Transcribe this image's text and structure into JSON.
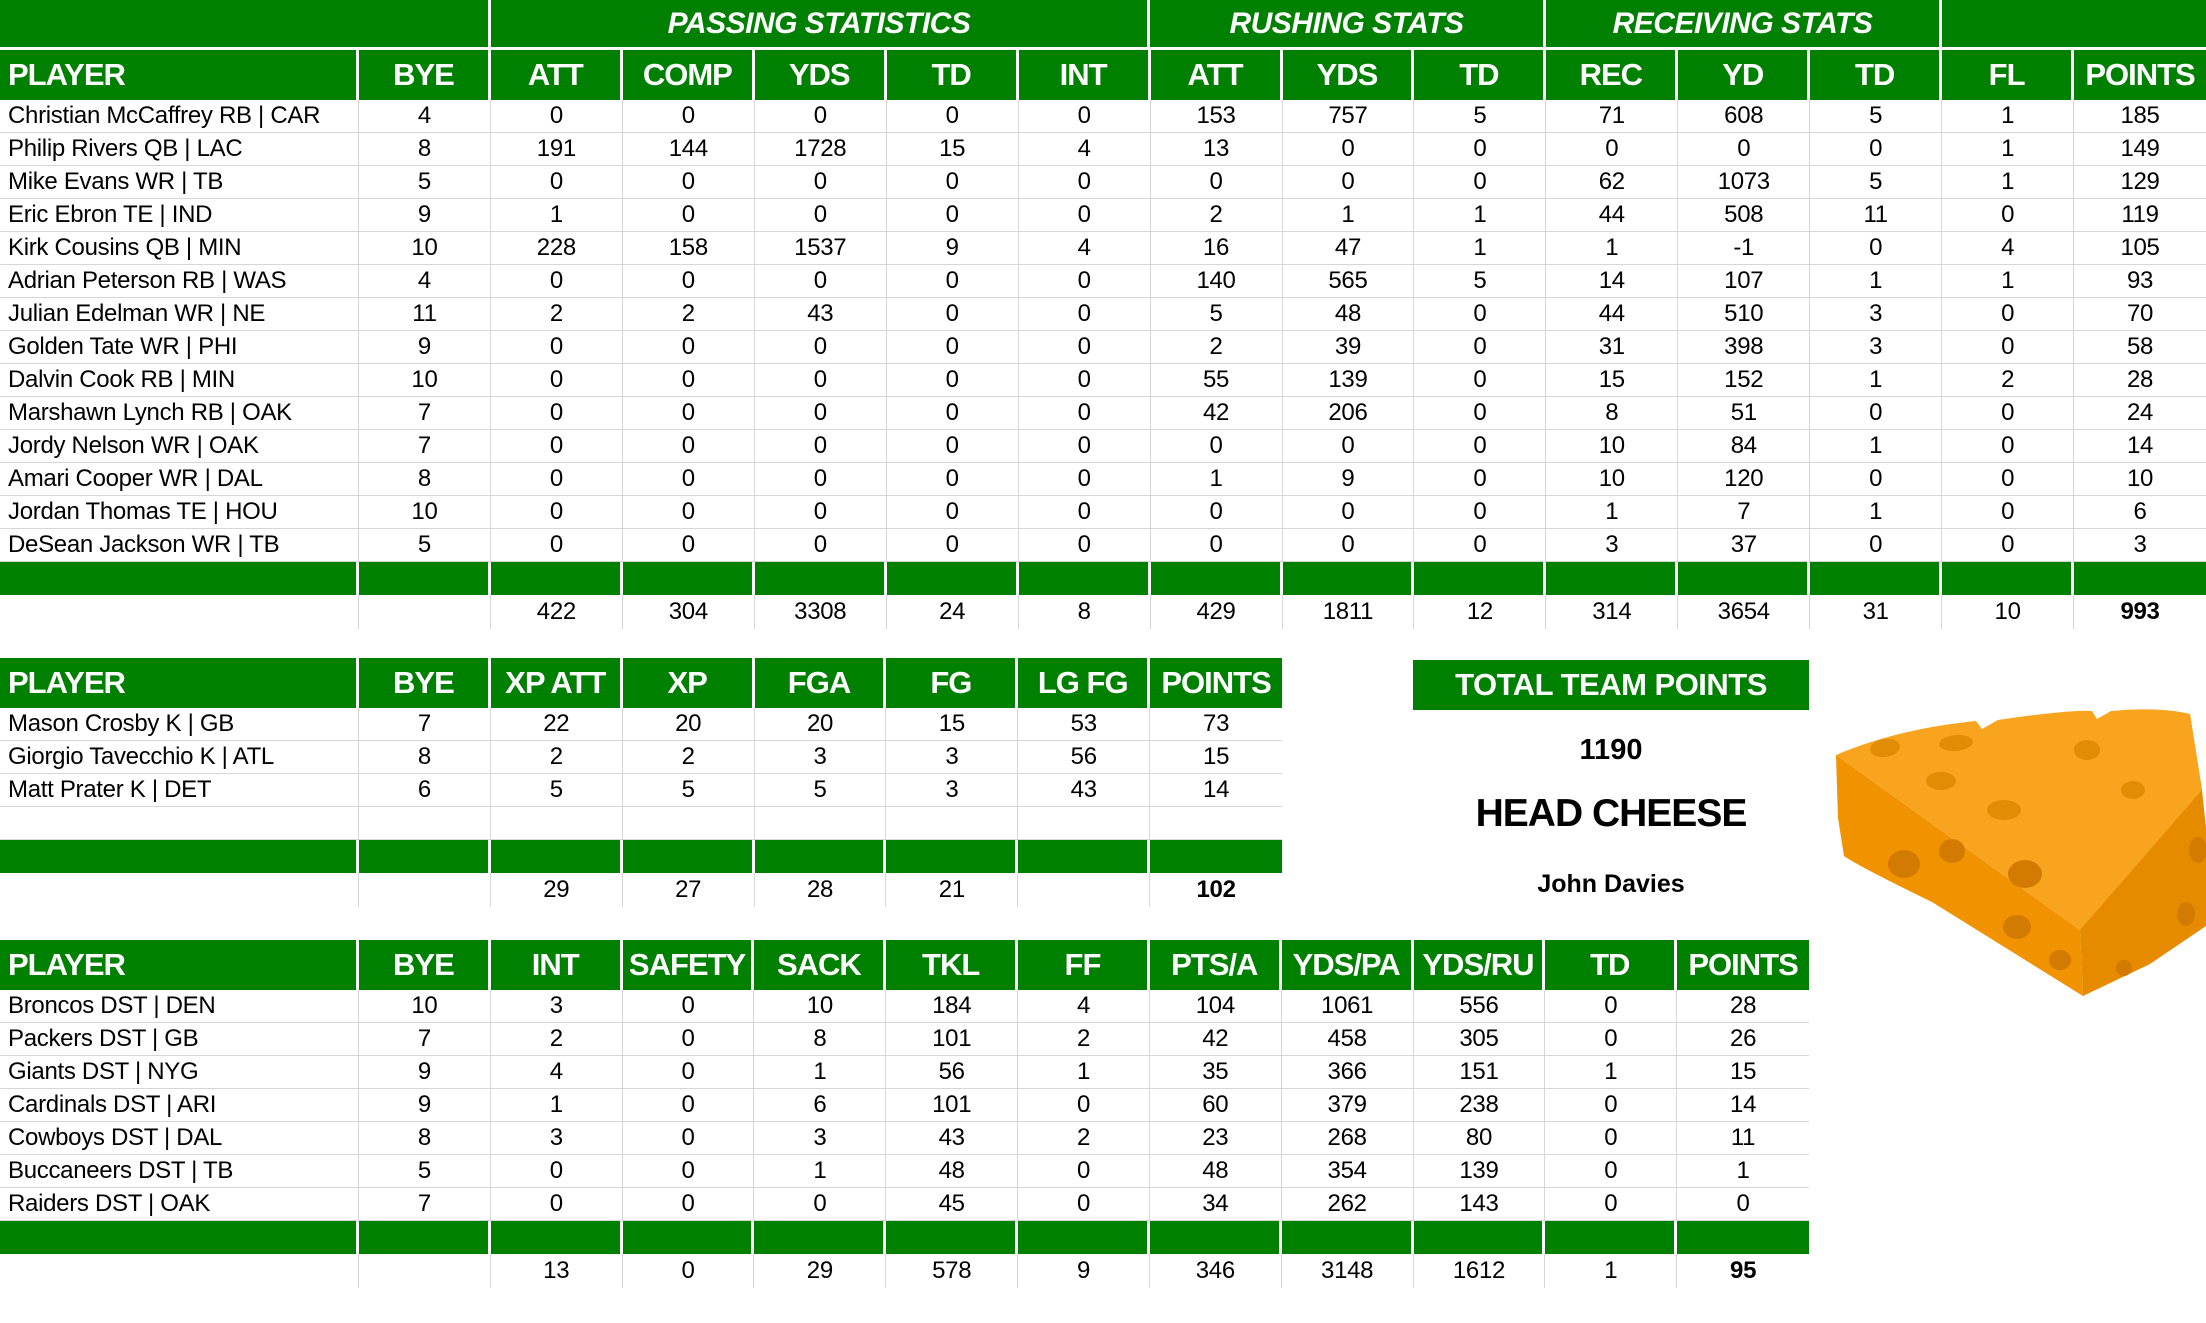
{
  "colors": {
    "header_green": "#008000",
    "grid_line": "#d6d6d6",
    "cheese_top": "#F9A41F",
    "cheese_front": "#F19200",
    "cheese_side": "#E68A00",
    "cheese_hole_top": "#E08C05",
    "cheese_hole_front": "#D27A02"
  },
  "offense_table": {
    "group_headers": [
      "",
      "PASSING STATISTICS",
      "RUSHING STATS",
      "RECEIVING STATS",
      ""
    ],
    "columns": [
      "PLAYER",
      "BYE",
      "ATT",
      "COMP",
      "YDS",
      "TD",
      "INT",
      "ATT",
      "YDS",
      "TD",
      "REC",
      "YD",
      "TD",
      "FL",
      "POINTS"
    ],
    "rows": [
      [
        "Christian McCaffrey RB | CAR",
        "4",
        "0",
        "0",
        "0",
        "0",
        "0",
        "153",
        "757",
        "5",
        "71",
        "608",
        "5",
        "1",
        "185"
      ],
      [
        "Philip Rivers QB | LAC",
        "8",
        "191",
        "144",
        "1728",
        "15",
        "4",
        "13",
        "0",
        "0",
        "0",
        "0",
        "0",
        "1",
        "149"
      ],
      [
        "Mike Evans WR | TB",
        "5",
        "0",
        "0",
        "0",
        "0",
        "0",
        "0",
        "0",
        "0",
        "62",
        "1073",
        "5",
        "1",
        "129"
      ],
      [
        "Eric Ebron TE | IND",
        "9",
        "1",
        "0",
        "0",
        "0",
        "0",
        "2",
        "1",
        "1",
        "44",
        "508",
        "11",
        "0",
        "119"
      ],
      [
        "Kirk Cousins QB | MIN",
        "10",
        "228",
        "158",
        "1537",
        "9",
        "4",
        "16",
        "47",
        "1",
        "1",
        "-1",
        "0",
        "4",
        "105"
      ],
      [
        "Adrian Peterson RB | WAS",
        "4",
        "0",
        "0",
        "0",
        "0",
        "0",
        "140",
        "565",
        "5",
        "14",
        "107",
        "1",
        "1",
        "93"
      ],
      [
        "Julian Edelman WR | NE",
        "11",
        "2",
        "2",
        "43",
        "0",
        "0",
        "5",
        "48",
        "0",
        "44",
        "510",
        "3",
        "0",
        "70"
      ],
      [
        "Golden Tate WR | PHI",
        "9",
        "0",
        "0",
        "0",
        "0",
        "0",
        "2",
        "39",
        "0",
        "31",
        "398",
        "3",
        "0",
        "58"
      ],
      [
        "Dalvin Cook RB | MIN",
        "10",
        "0",
        "0",
        "0",
        "0",
        "0",
        "55",
        "139",
        "0",
        "15",
        "152",
        "1",
        "2",
        "28"
      ],
      [
        "Marshawn Lynch RB | OAK",
        "7",
        "0",
        "0",
        "0",
        "0",
        "0",
        "42",
        "206",
        "0",
        "8",
        "51",
        "0",
        "0",
        "24"
      ],
      [
        "Jordy Nelson WR | OAK",
        "7",
        "0",
        "0",
        "0",
        "0",
        "0",
        "0",
        "0",
        "0",
        "10",
        "84",
        "1",
        "0",
        "14"
      ],
      [
        "Amari Cooper WR | DAL",
        "8",
        "0",
        "0",
        "0",
        "0",
        "0",
        "1",
        "9",
        "0",
        "10",
        "120",
        "0",
        "0",
        "10"
      ],
      [
        "Jordan Thomas TE | HOU",
        "10",
        "0",
        "0",
        "0",
        "0",
        "0",
        "0",
        "0",
        "0",
        "1",
        "7",
        "1",
        "0",
        "6"
      ],
      [
        "DeSean Jackson WR | TB",
        "5",
        "0",
        "0",
        "0",
        "0",
        "0",
        "0",
        "0",
        "0",
        "3",
        "37",
        "0",
        "0",
        "3"
      ]
    ],
    "totals": [
      "",
      "",
      "422",
      "304",
      "3308",
      "24",
      "8",
      "429",
      "1811",
      "12",
      "314",
      "3654",
      "31",
      "10",
      "993"
    ]
  },
  "kicker_table": {
    "columns": [
      "PLAYER",
      "BYE",
      "XP ATT",
      "XP",
      "FGA",
      "FG",
      "LG FG",
      "POINTS"
    ],
    "rows": [
      [
        "Mason Crosby K | GB",
        "7",
        "22",
        "20",
        "20",
        "15",
        "53",
        "73"
      ],
      [
        "Giorgio Tavecchio K | ATL",
        "8",
        "2",
        "2",
        "3",
        "3",
        "56",
        "15"
      ],
      [
        "Matt Prater K | DET",
        "6",
        "5",
        "5",
        "5",
        "3",
        "43",
        "14"
      ],
      [
        "",
        "",
        "",
        "",
        "",
        "",
        "",
        ""
      ]
    ],
    "totals": [
      "",
      "",
      "29",
      "27",
      "28",
      "21",
      "",
      "102"
    ]
  },
  "dst_table": {
    "columns": [
      "PLAYER",
      "BYE",
      "INT",
      "SAFETY",
      "SACK",
      "TKL",
      "FF",
      "PTS/A",
      "YDS/PA",
      "YDS/RU",
      "TD",
      "POINTS"
    ],
    "rows": [
      [
        "Broncos DST | DEN",
        "10",
        "3",
        "0",
        "10",
        "184",
        "4",
        "104",
        "1061",
        "556",
        "0",
        "28"
      ],
      [
        "Packers DST | GB",
        "7",
        "2",
        "0",
        "8",
        "101",
        "2",
        "42",
        "458",
        "305",
        "0",
        "26"
      ],
      [
        "Giants DST | NYG",
        "9",
        "4",
        "0",
        "1",
        "56",
        "1",
        "35",
        "366",
        "151",
        "1",
        "15"
      ],
      [
        "Cardinals DST | ARI",
        "9",
        "1",
        "0",
        "6",
        "101",
        "0",
        "60",
        "379",
        "238",
        "0",
        "14"
      ],
      [
        "Cowboys DST | DAL",
        "8",
        "3",
        "0",
        "3",
        "43",
        "2",
        "23",
        "268",
        "80",
        "0",
        "11"
      ],
      [
        "Buccaneers DST | TB",
        "5",
        "0",
        "0",
        "1",
        "48",
        "0",
        "48",
        "354",
        "139",
        "0",
        "1"
      ],
      [
        "Raiders DST | OAK",
        "7",
        "0",
        "0",
        "0",
        "45",
        "0",
        "34",
        "262",
        "143",
        "0",
        "0"
      ]
    ],
    "totals": [
      "",
      "",
      "13",
      "0",
      "29",
      "578",
      "9",
      "346",
      "3148",
      "1612",
      "1",
      "95"
    ]
  },
  "team_summary": {
    "title": "TOTAL TEAM POINTS",
    "points": "1190",
    "team_name": "HEAD CHEESE",
    "owner": "John Davies"
  }
}
